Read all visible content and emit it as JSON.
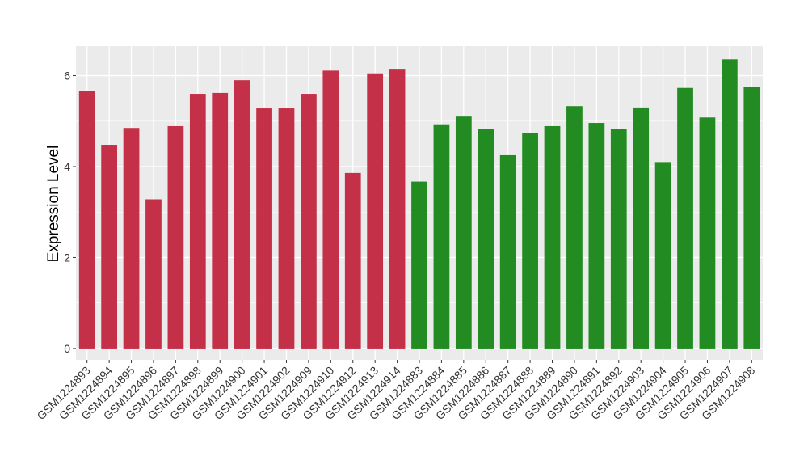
{
  "chart_data": {
    "type": "bar",
    "title": "",
    "xlabel": "",
    "ylabel": "Expression Level",
    "ylim": [
      -0.25,
      6.65
    ],
    "yticks": [
      0,
      2,
      4,
      6
    ],
    "grid": true,
    "legend": "none",
    "panel_background": "#ebebeb",
    "grid_color": "#ffffff",
    "groups": [
      {
        "color": "#c43048",
        "count": 15
      },
      {
        "color": "#228b22",
        "count": 16
      }
    ],
    "categories": [
      "GSM1224893",
      "GSM1224894",
      "GSM1224895",
      "GSM1224896",
      "GSM1224897",
      "GSM1224898",
      "GSM1224899",
      "GSM1224900",
      "GSM1224901",
      "GSM1224902",
      "GSM1224909",
      "GSM1224910",
      "GSM1224912",
      "GSM1224913",
      "GSM1224914",
      "GSM1224883",
      "GSM1224884",
      "GSM1224885",
      "GSM1224886",
      "GSM1224887",
      "GSM1224888",
      "GSM1224889",
      "GSM1224890",
      "GSM1224891",
      "GSM1224892",
      "GSM1224903",
      "GSM1224904",
      "GSM1224905",
      "GSM1224906",
      "GSM1224907",
      "GSM1224908"
    ],
    "values": [
      5.66,
      4.48,
      4.85,
      3.28,
      4.89,
      5.6,
      5.62,
      5.9,
      5.28,
      5.28,
      5.6,
      6.11,
      3.86,
      6.05,
      6.15,
      3.67,
      4.93,
      5.1,
      4.82,
      4.25,
      4.73,
      4.89,
      5.33,
      4.96,
      4.82,
      5.3,
      4.1,
      5.73,
      5.08,
      6.36,
      5.75
    ]
  }
}
